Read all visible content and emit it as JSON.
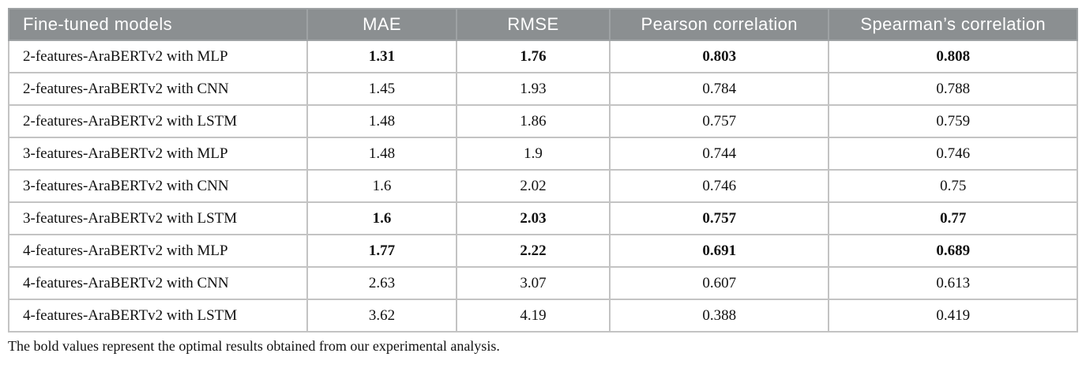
{
  "table": {
    "columns": [
      "Fine-tuned models",
      "MAE",
      "RMSE",
      "Pearson correlation",
      "Spearman’s correlation"
    ],
    "rows": [
      {
        "model": "2-features-AraBERTv2 with MLP",
        "values": [
          "1.31",
          "1.76",
          "0.803",
          "0.808"
        ],
        "bold": true
      },
      {
        "model": "2-features-AraBERTv2 with CNN",
        "values": [
          "1.45",
          "1.93",
          "0.784",
          "0.788"
        ],
        "bold": false
      },
      {
        "model": "2-features-AraBERTv2 with LSTM",
        "values": [
          "1.48",
          "1.86",
          "0.757",
          "0.759"
        ],
        "bold": false
      },
      {
        "model": "3-features-AraBERTv2 with MLP",
        "values": [
          "1.48",
          "1.9",
          "0.744",
          "0.746"
        ],
        "bold": false
      },
      {
        "model": "3-features-AraBERTv2 with CNN",
        "values": [
          "1.6",
          "2.02",
          "0.746",
          "0.75"
        ],
        "bold": false
      },
      {
        "model": "3-features-AraBERTv2 with LSTM",
        "values": [
          "1.6",
          "2.03",
          "0.757",
          "0.77"
        ],
        "bold": true
      },
      {
        "model": "4-features-AraBERTv2 with MLP",
        "values": [
          "1.77",
          "2.22",
          "0.691",
          "0.689"
        ],
        "bold": true
      },
      {
        "model": "4-features-AraBERTv2 with CNN",
        "values": [
          "2.63",
          "3.07",
          "0.607",
          "0.613"
        ],
        "bold": false
      },
      {
        "model": "4-features-AraBERTv2 with LSTM",
        "values": [
          "3.62",
          "4.19",
          "0.388",
          "0.419"
        ],
        "bold": false
      }
    ],
    "footnote": "The bold values represent the optimal results obtained from our experimental analysis.",
    "colors": {
      "header_background": "#8b8f91",
      "header_text": "#ffffff",
      "body_border": "#c3c3c3",
      "body_text": "#111111"
    }
  }
}
